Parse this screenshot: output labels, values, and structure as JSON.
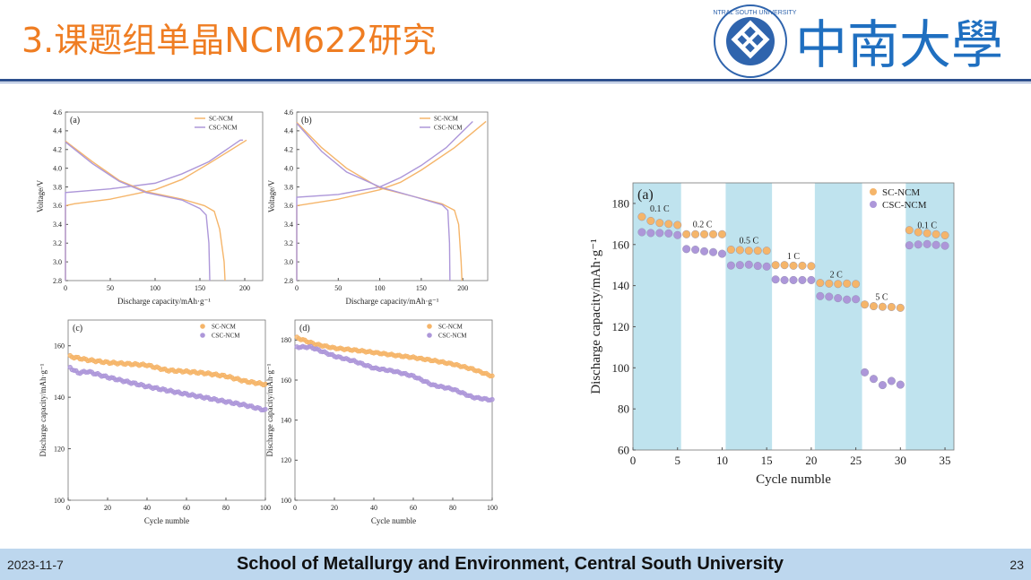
{
  "header": {
    "title": "3.课题组单晶NCM622研究",
    "logo_text": "CENTRAL SOUTH UNIVERSITY",
    "logo_name": "中南大學"
  },
  "footer": {
    "date": "2023-11-7",
    "institution": "School of Metallurgy and Environment, Central South University",
    "page": "23"
  },
  "colors": {
    "title": "#ef7d22",
    "sc": "#f5b56a",
    "csc": "#ad97d9",
    "band": "#bfe3ee",
    "rule": "#2d4f8e",
    "footer": "#bdd7ee"
  },
  "chart_data": [
    {
      "type": "line",
      "panel": "(a)",
      "xlabel": "Discharge capacity/mAh·g⁻¹",
      "ylabel": "Voltage/V",
      "xlim": [
        0,
        220
      ],
      "ylim": [
        2.8,
        4.6
      ],
      "xticks": [
        "0",
        "50",
        "100",
        "150",
        "200"
      ],
      "yticks": [
        "2.8",
        "3.0",
        "3.2",
        "3.4",
        "3.6",
        "3.8",
        "4.0",
        "4.2",
        "4.4",
        "4.6"
      ],
      "legend": [
        "SC-NCM",
        "CSC-NCM"
      ],
      "legend_position": "top-right",
      "series": [
        {
          "name": "SC-NCM charge",
          "color": "sc",
          "points": [
            [
              0,
              2.8
            ],
            [
              0,
              3.6
            ],
            [
              10,
              3.62
            ],
            [
              50,
              3.67
            ],
            [
              100,
              3.77
            ],
            [
              130,
              3.88
            ],
            [
              160,
              4.05
            ],
            [
              202,
              4.3
            ]
          ]
        },
        {
          "name": "CSC-NCM charge",
          "color": "csc",
          "points": [
            [
              0,
              2.8
            ],
            [
              0,
              3.74
            ],
            [
              50,
              3.78
            ],
            [
              100,
              3.84
            ],
            [
              130,
              3.94
            ],
            [
              160,
              4.07
            ],
            [
              195,
              4.3
            ],
            [
              198,
              4.3
            ]
          ]
        },
        {
          "name": "SC-NCM discharge",
          "color": "sc",
          "points": [
            [
              0,
              4.29
            ],
            [
              30,
              4.07
            ],
            [
              60,
              3.87
            ],
            [
              90,
              3.75
            ],
            [
              130,
              3.67
            ],
            [
              155,
              3.6
            ],
            [
              166,
              3.54
            ],
            [
              172,
              3.35
            ],
            [
              177,
              3.0
            ],
            [
              178,
              2.8
            ]
          ]
        },
        {
          "name": "CSC-NCM discharge",
          "color": "csc",
          "points": [
            [
              0,
              4.28
            ],
            [
              30,
              4.05
            ],
            [
              60,
              3.86
            ],
            [
              90,
              3.74
            ],
            [
              130,
              3.66
            ],
            [
              150,
              3.57
            ],
            [
              157,
              3.5
            ],
            [
              160,
              3.2
            ],
            [
              161,
              2.8
            ]
          ]
        }
      ]
    },
    {
      "type": "line",
      "panel": "(b)",
      "xlabel": "Discharge capacity/mAh·g⁻¹",
      "ylabel": "Voltage/V",
      "xlim": [
        0,
        230
      ],
      "ylim": [
        2.8,
        4.6
      ],
      "xticks": [
        "0",
        "50",
        "100",
        "150",
        "200"
      ],
      "yticks": [
        "2.8",
        "3.0",
        "3.2",
        "3.4",
        "3.6",
        "3.8",
        "4.0",
        "4.2",
        "4.4",
        "4.6"
      ],
      "legend": [
        "SC-NCM",
        "CSC-NCM"
      ],
      "legend_position": "top-right",
      "series": [
        {
          "name": "SC-NCM charge",
          "color": "sc",
          "points": [
            [
              0,
              2.8
            ],
            [
              0,
              3.6
            ],
            [
              50,
              3.67
            ],
            [
              100,
              3.77
            ],
            [
              125,
              3.85
            ],
            [
              150,
              3.98
            ],
            [
              190,
              4.22
            ],
            [
              228,
              4.5
            ]
          ]
        },
        {
          "name": "CSC-NCM charge",
          "color": "csc",
          "points": [
            [
              0,
              2.8
            ],
            [
              0,
              3.69
            ],
            [
              50,
              3.72
            ],
            [
              100,
              3.8
            ],
            [
              125,
              3.9
            ],
            [
              150,
              4.03
            ],
            [
              180,
              4.22
            ],
            [
              212,
              4.5
            ]
          ]
        },
        {
          "name": "SC-NCM discharge",
          "color": "sc",
          "points": [
            [
              0,
              4.49
            ],
            [
              30,
              4.22
            ],
            [
              60,
              4.0
            ],
            [
              100,
              3.79
            ],
            [
              140,
              3.7
            ],
            [
              175,
              3.62
            ],
            [
              190,
              3.55
            ],
            [
              195,
              3.4
            ],
            [
              198,
              3.0
            ],
            [
              199,
              2.8
            ]
          ]
        },
        {
          "name": "CSC-NCM discharge",
          "color": "csc",
          "points": [
            [
              0,
              4.48
            ],
            [
              30,
              4.18
            ],
            [
              60,
              3.96
            ],
            [
              100,
              3.8
            ],
            [
              140,
              3.7
            ],
            [
              175,
              3.61
            ],
            [
              182,
              3.55
            ],
            [
              184,
              3.2
            ],
            [
              184.5,
              2.8
            ]
          ]
        }
      ]
    },
    {
      "type": "scatter",
      "panel": "(c)",
      "xlabel": "Cycle numble",
      "ylabel": "Discharge capacity/mAh·g⁻¹",
      "xlim": [
        0,
        100
      ],
      "ylim": [
        100,
        170
      ],
      "xticks": [
        "0",
        "20",
        "40",
        "60",
        "80",
        "100"
      ],
      "yticks": [
        "100",
        "120",
        "140",
        "160"
      ],
      "legend": [
        "SC-NCM",
        "CSC-NCM"
      ],
      "legend_position": "top-right",
      "series": [
        {
          "name": "SC-NCM",
          "color": "sc",
          "points": [
            [
              0,
              156
            ],
            [
              10,
              154.5
            ],
            [
              20,
              153.5
            ],
            [
              30,
              153
            ],
            [
              40,
              152.5
            ],
            [
              50,
              150.5
            ],
            [
              60,
              150
            ],
            [
              70,
              149.3
            ],
            [
              80,
              148.2
            ],
            [
              90,
              146.2
            ],
            [
              100,
              145
            ]
          ]
        },
        {
          "name": "CSC-NCM",
          "color": "csc",
          "points": [
            [
              0,
              152
            ],
            [
              5,
              149.5
            ],
            [
              10,
              150
            ],
            [
              20,
              147.8
            ],
            [
              30,
              146
            ],
            [
              40,
              144.2
            ],
            [
              50,
              142.7
            ],
            [
              60,
              141.2
            ],
            [
              70,
              139.8
            ],
            [
              80,
              138.3
            ],
            [
              90,
              136.9
            ],
            [
              100,
              135
            ]
          ]
        }
      ]
    },
    {
      "type": "scatter",
      "panel": "(d)",
      "xlabel": "Cycle numble",
      "ylabel": "Discharge capacity/mAh·g⁻¹",
      "xlim": [
        0,
        100
      ],
      "ylim": [
        100,
        190
      ],
      "xticks": [
        "0",
        "20",
        "40",
        "60",
        "80",
        "100"
      ],
      "yticks": [
        "100",
        "120",
        "140",
        "160",
        "180"
      ],
      "legend": [
        "SC-NCM",
        "CSC-NCM"
      ],
      "legend_position": "top-right",
      "series": [
        {
          "name": "SC-NCM",
          "color": "sc",
          "points": [
            [
              0,
              181.5
            ],
            [
              10,
              178
            ],
            [
              20,
              176
            ],
            [
              30,
              175
            ],
            [
              40,
              173.8
            ],
            [
              50,
              172.5
            ],
            [
              60,
              171.3
            ],
            [
              70,
              169.8
            ],
            [
              80,
              168
            ],
            [
              90,
              165.5
            ],
            [
              100,
              162
            ]
          ]
        },
        {
          "name": "CSC-NCM",
          "color": "csc",
          "points": [
            [
              0,
              176.5
            ],
            [
              8,
              176.5
            ],
            [
              20,
              172
            ],
            [
              30,
              169.5
            ],
            [
              40,
              166
            ],
            [
              50,
              164.5
            ],
            [
              60,
              162
            ],
            [
              70,
              157.5
            ],
            [
              80,
              155.5
            ],
            [
              90,
              151.5
            ],
            [
              100,
              150
            ]
          ]
        }
      ]
    },
    {
      "type": "scatter",
      "panel": "(a)",
      "xlabel": "Cycle numble",
      "ylabel": "Discharge capacity/mAh·g⁻¹",
      "xlim": [
        0,
        36
      ],
      "ylim": [
        60,
        190
      ],
      "xticks": [
        "0",
        "5",
        "10",
        "15",
        "20",
        "25",
        "30",
        "35"
      ],
      "yticks": [
        "60",
        "80",
        "100",
        "120",
        "140",
        "160",
        "180"
      ],
      "legend": [
        "SC-NCM",
        "CSC-NCM"
      ],
      "legend_position": "top-right",
      "bands": [
        [
          0,
          5.4
        ],
        [
          10.4,
          15.6
        ],
        [
          20.4,
          25.7
        ],
        [
          30.6,
          36
        ]
      ],
      "annotations": [
        {
          "text": "0.1 C",
          "x": 3,
          "y": 176
        },
        {
          "text": "0.2 C",
          "x": 7.8,
          "y": 168.5
        },
        {
          "text": "0.5 C",
          "x": 13,
          "y": 160.5
        },
        {
          "text": "1 C",
          "x": 18,
          "y": 153
        },
        {
          "text": "2 C",
          "x": 22.8,
          "y": 144
        },
        {
          "text": "5 C",
          "x": 27.9,
          "y": 133
        },
        {
          "text": "0.1 C",
          "x": 33,
          "y": 168
        }
      ],
      "series": [
        {
          "name": "SC-NCM",
          "color": "sc",
          "points": [
            [
              1,
              173.5
            ],
            [
              2,
              171.5
            ],
            [
              3,
              170.5
            ],
            [
              4,
              170
            ],
            [
              5,
              169.5
            ],
            [
              6,
              165
            ],
            [
              7,
              165
            ],
            [
              8,
              165
            ],
            [
              9,
              165
            ],
            [
              10,
              165
            ],
            [
              11,
              157.5
            ],
            [
              12,
              157.3
            ],
            [
              13,
              157
            ],
            [
              14,
              157
            ],
            [
              15,
              157
            ],
            [
              16,
              150
            ],
            [
              17,
              150
            ],
            [
              18,
              149.7
            ],
            [
              19,
              149.7
            ],
            [
              20,
              149.5
            ],
            [
              21,
              141.3
            ],
            [
              22,
              141
            ],
            [
              23,
              140.8
            ],
            [
              24,
              141
            ],
            [
              25,
              140.8
            ],
            [
              26,
              130.8
            ],
            [
              27,
              130
            ],
            [
              28,
              129.7
            ],
            [
              29,
              129.6
            ],
            [
              30,
              129.2
            ],
            [
              31,
              167
            ],
            [
              32,
              166
            ],
            [
              33,
              165.5
            ],
            [
              34,
              165
            ],
            [
              35,
              164.5
            ]
          ]
        },
        {
          "name": "CSC-NCM",
          "color": "csc",
          "points": [
            [
              1,
              166
            ],
            [
              2,
              165.6
            ],
            [
              3,
              165.6
            ],
            [
              4,
              165.4
            ],
            [
              5,
              164.6
            ],
            [
              6,
              157.8
            ],
            [
              7,
              157.5
            ],
            [
              8,
              156.7
            ],
            [
              9,
              156.3
            ],
            [
              10,
              155.5
            ],
            [
              11,
              149.8
            ],
            [
              12,
              150
            ],
            [
              13,
              150.2
            ],
            [
              14,
              149.6
            ],
            [
              15,
              149.3
            ],
            [
              16,
              143
            ],
            [
              17,
              142.7
            ],
            [
              18,
              142.7
            ],
            [
              19,
              142.7
            ],
            [
              20,
              142.7
            ],
            [
              21,
              134.9
            ],
            [
              22,
              134.6
            ],
            [
              23,
              133.9
            ],
            [
              24,
              133.2
            ],
            [
              25,
              133.4
            ],
            [
              26,
              97.8
            ],
            [
              27,
              94.6
            ],
            [
              28,
              91.6
            ],
            [
              29,
              93.6
            ],
            [
              30,
              91.8
            ],
            [
              31,
              159.6
            ],
            [
              32,
              160
            ],
            [
              33,
              160.2
            ],
            [
              34,
              159.8
            ],
            [
              35,
              159.4
            ]
          ]
        }
      ]
    }
  ]
}
